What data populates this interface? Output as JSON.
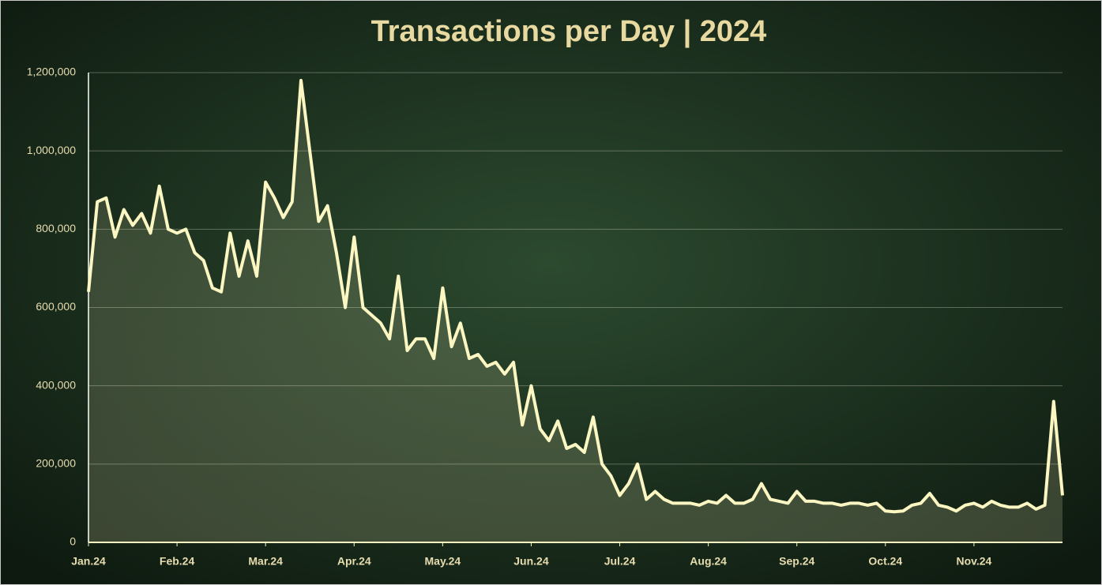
{
  "chart_data": {
    "type": "area-line",
    "title": "Transactions per Day | 2024",
    "categories": [
      "Jan.24",
      null,
      null,
      null,
      null,
      null,
      null,
      null,
      null,
      null,
      "Feb.24",
      null,
      null,
      null,
      null,
      null,
      null,
      null,
      null,
      null,
      "Mar.24",
      null,
      null,
      null,
      null,
      null,
      null,
      null,
      null,
      null,
      "Apr.24",
      null,
      null,
      null,
      null,
      null,
      null,
      null,
      null,
      null,
      "May.24",
      null,
      null,
      null,
      null,
      null,
      null,
      null,
      null,
      null,
      "Jun.24",
      null,
      null,
      null,
      null,
      null,
      null,
      null,
      null,
      null,
      "Jul.24",
      null,
      null,
      null,
      null,
      null,
      null,
      null,
      null,
      null,
      "Aug.24",
      null,
      null,
      null,
      null,
      null,
      null,
      null,
      null,
      null,
      "Sep.24",
      null,
      null,
      null,
      null,
      null,
      null,
      null,
      null,
      null,
      "Oct.24",
      null,
      null,
      null,
      null,
      null,
      null,
      null,
      null,
      null,
      "Nov.24",
      null,
      null,
      null,
      null,
      null,
      null,
      null,
      null,
      null,
      null
    ],
    "values": [
      640000,
      870000,
      880000,
      780000,
      850000,
      810000,
      840000,
      790000,
      910000,
      800000,
      790000,
      800000,
      740000,
      720000,
      650000,
      640000,
      790000,
      680000,
      770000,
      680000,
      920000,
      880000,
      830000,
      870000,
      1180000,
      1000000,
      820000,
      860000,
      740000,
      600000,
      780000,
      600000,
      580000,
      560000,
      520000,
      680000,
      490000,
      520000,
      520000,
      470000,
      650000,
      500000,
      560000,
      470000,
      480000,
      450000,
      460000,
      430000,
      460000,
      300000,
      400000,
      290000,
      260000,
      310000,
      240000,
      250000,
      230000,
      320000,
      200000,
      170000,
      120000,
      150000,
      200000,
      110000,
      130000,
      110000,
      100000,
      100000,
      100000,
      95000,
      105000,
      100000,
      120000,
      100000,
      100000,
      110000,
      150000,
      110000,
      105000,
      100000,
      130000,
      105000,
      105000,
      100000,
      100000,
      95000,
      100000,
      100000,
      95000,
      100000,
      80000,
      78000,
      80000,
      95000,
      100000,
      125000,
      95000,
      90000,
      80000,
      95000,
      100000,
      90000,
      105000,
      95000,
      90000,
      90000,
      100000,
      85000,
      95000,
      360000,
      120000
    ],
    "color": "#fbf6c2",
    "ylim": [
      0,
      1200000
    ],
    "yticks": [
      0,
      {
        "value": 200000,
        "label": "200,000"
      },
      {
        "value": 400000,
        "label": "400,000"
      },
      {
        "value": 600000,
        "label": "600,000"
      },
      {
        "value": 800000,
        "label": "800,000"
      },
      {
        "value": 1000000,
        "label": "1,000,000"
      },
      {
        "value": 1200000,
        "label": "1,200,000"
      }
    ],
    "grid": true
  }
}
